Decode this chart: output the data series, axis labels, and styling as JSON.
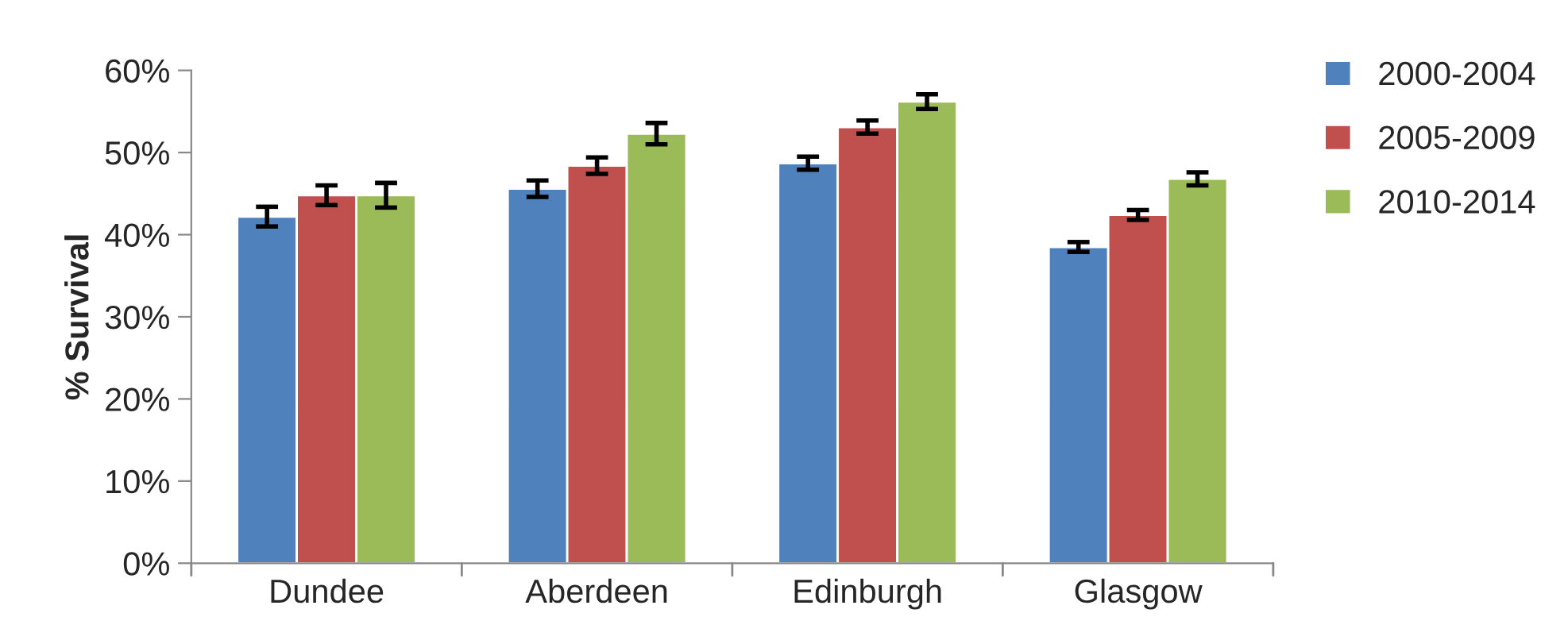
{
  "chart_data": {
    "type": "bar",
    "ylabel": "% Survival",
    "categories": [
      "Dundee",
      "Aberdeen",
      "Edinburgh",
      "Glasgow"
    ],
    "series": [
      {
        "name": "2000-2004",
        "color": "#4f81bd",
        "values": [
          42.2,
          45.6,
          48.7,
          38.5
        ],
        "errors": [
          1.2,
          1.0,
          0.8,
          0.6
        ]
      },
      {
        "name": "2005-2009",
        "color": "#c0504d",
        "values": [
          44.8,
          48.4,
          53.1,
          42.4
        ],
        "errors": [
          1.2,
          1.0,
          0.8,
          0.6
        ]
      },
      {
        "name": "2010-2014",
        "color": "#9bbb59",
        "values": [
          44.8,
          52.3,
          56.2,
          46.8
        ],
        "errors": [
          1.5,
          1.3,
          0.9,
          0.8
        ]
      }
    ],
    "ylim": [
      0,
      60
    ],
    "yticks": [
      {
        "value": 0,
        "label": "0%"
      },
      {
        "value": 10,
        "label": "10%"
      },
      {
        "value": 20,
        "label": "20%"
      },
      {
        "value": 30,
        "label": "30%"
      },
      {
        "value": 40,
        "label": "40%"
      },
      {
        "value": 50,
        "label": "50%"
      },
      {
        "value": 60,
        "label": "60%"
      }
    ],
    "grid": false,
    "legend": "top right"
  }
}
